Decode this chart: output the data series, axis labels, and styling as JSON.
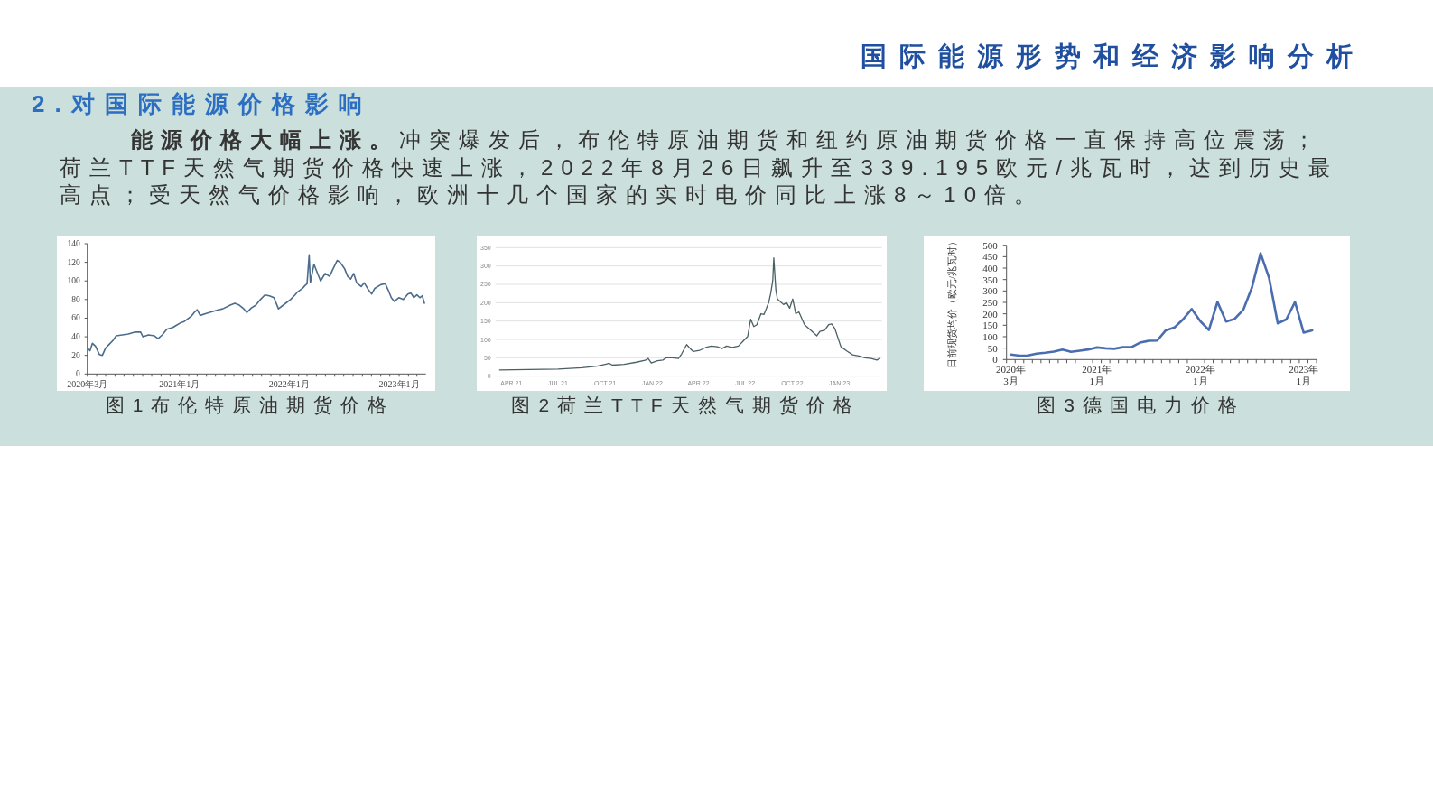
{
  "chart_data": [
    {
      "type": "other",
      "title": "国际能源形势和经济影响分析",
      "subtitle": "2.对国际能源价格影响",
      "annotations": [
        "能源价格大幅上涨。",
        "冲突爆发后，布伦特原油期货和纽约原油期货价格一直保持高位震荡；荷兰TTF天然气期货价格快速上涨，2022年8月26日飙升至339.195欧元/兆瓦时，达到历史最高点；受天然气价格影响，欧洲十几个国家的实时电价同比上涨8～10倍。"
      ]
    },
    {
      "type": "line",
      "title": "图1布伦特原油期货价格",
      "color": "#4c6c8c",
      "x": [
        "2020-03-01",
        "2020-03-10",
        "2020-03-18",
        "2020-03-28",
        "2020-04-10",
        "2020-04-20",
        "2020-05-01",
        "2020-05-10",
        "2020-05-25",
        "2020-06-05",
        "2020-06-25",
        "2020-07-15",
        "2020-08-05",
        "2020-08-25",
        "2020-09-02",
        "2020-09-20",
        "2020-10-10",
        "2020-10-22",
        "2020-11-05",
        "2020-11-20",
        "2020-12-10",
        "2020-12-20",
        "2021-01-05",
        "2021-01-15",
        "2021-02-09",
        "2021-02-19",
        "2021-03-01",
        "2021-03-11",
        "2021-03-31",
        "2021-04-20",
        "2021-05-10",
        "2021-05-25",
        "2021-06-19",
        "2021-07-04",
        "2021-07-19",
        "2021-08-03",
        "2021-08-13",
        "2021-08-28",
        "2021-09-12",
        "2021-09-27",
        "2021-10-12",
        "2021-10-27",
        "2021-11-11",
        "2021-11-26",
        "2021-12-16",
        "2022-01-05",
        "2022-01-20",
        "2022-01-28",
        "2022-02-14",
        "2022-02-22",
        "2022-03-01",
        "2022-03-08",
        "2022-03-12",
        "2022-03-24",
        "2022-04-05",
        "2022-04-15",
        "2022-04-30",
        "2022-05-15",
        "2022-05-25",
        "2022-06-09",
        "2022-06-19",
        "2022-07-04",
        "2022-07-14",
        "2022-07-24",
        "2022-08-03",
        "2022-08-13",
        "2022-08-28",
        "2022-09-07",
        "2022-09-22",
        "2022-10-02",
        "2022-10-12",
        "2022-11-01",
        "2022-11-16",
        "2022-11-26",
        "2022-12-06",
        "2022-12-16",
        "2022-12-31",
        "2023-01-15",
        "2023-01-30",
        "2023-02-09",
        "2023-02-19",
        "2023-03-01",
        "2023-03-11",
        "2023-03-19",
        "2023-03-26"
      ],
      "values": [
        28,
        25,
        33,
        30,
        21,
        20,
        28,
        31,
        36,
        41,
        42,
        43,
        45,
        45,
        40,
        42,
        41,
        38,
        42,
        48,
        50,
        52,
        55,
        56,
        62,
        66,
        69,
        63,
        65,
        67,
        69,
        70,
        74,
        76,
        74,
        70,
        66,
        71,
        74,
        80,
        85,
        84,
        82,
        70,
        75,
        80,
        85,
        88,
        92,
        95,
        97,
        128,
        98,
        118,
        108,
        100,
        108,
        105,
        112,
        122,
        120,
        113,
        105,
        102,
        108,
        98,
        94,
        98,
        90,
        86,
        92,
        96,
        97,
        90,
        82,
        78,
        82,
        80,
        86,
        87,
        82,
        85,
        82,
        84,
        76
      ],
      "xlim": [
        "2020-03-01",
        "2023-03-31"
      ],
      "xticks": [
        {
          "value": "2020-03",
          "label": "2020年3月"
        },
        {
          "value": "2020-04",
          "label": null
        },
        {
          "value": "2020-05",
          "label": null
        },
        {
          "value": "2020-06",
          "label": null
        },
        {
          "value": "2020-07",
          "label": null
        },
        {
          "value": "2020-08",
          "label": null
        },
        {
          "value": "2020-09",
          "label": null
        },
        {
          "value": "2020-10",
          "label": null
        },
        {
          "value": "2020-11",
          "label": null
        },
        {
          "value": "2020-12",
          "label": null
        },
        {
          "value": "2021-01",
          "label": "2021年1月"
        },
        {
          "value": "2021-02",
          "label": null
        },
        {
          "value": "2021-03",
          "label": null
        },
        {
          "value": "2021-04",
          "label": null
        },
        {
          "value": "2021-05",
          "label": null
        },
        {
          "value": "2021-06",
          "label": null
        },
        {
          "value": "2021-07",
          "label": null
        },
        {
          "value": "2021-08",
          "label": null
        },
        {
          "value": "2021-09",
          "label": null
        },
        {
          "value": "2021-10",
          "label": null
        },
        {
          "value": "2021-11",
          "label": null
        },
        {
          "value": "2021-12",
          "label": null
        },
        {
          "value": "2022-01",
          "label": "2022年1月"
        },
        {
          "value": "2022-02",
          "label": null
        },
        {
          "value": "2022-03",
          "label": null
        },
        {
          "value": "2022-04",
          "label": null
        },
        {
          "value": "2022-05",
          "label": null
        },
        {
          "value": "2022-06",
          "label": null
        },
        {
          "value": "2022-07",
          "label": null
        },
        {
          "value": "2022-08",
          "label": null
        },
        {
          "value": "2022-09",
          "label": null
        },
        {
          "value": "2022-10",
          "label": null
        },
        {
          "value": "2022-11",
          "label": null
        },
        {
          "value": "2022-12",
          "label": null
        },
        {
          "value": "2023-01",
          "label": "2023年1月"
        },
        {
          "value": "2023-02",
          "label": null
        },
        {
          "value": "2023-03",
          "label": null
        }
      ],
      "ylim": [
        0,
        140
      ],
      "yticks": [
        0,
        20,
        40,
        60,
        80,
        100,
        120,
        140
      ]
    },
    {
      "type": "line",
      "title": "图2荷兰TTF天然气期货价格",
      "color": "#4a5f63",
      "grid": "y",
      "x": [
        "2021-03-09",
        "2021-05-03",
        "2021-07-01",
        "2021-07-24",
        "2021-08-17",
        "2021-09-15",
        "2021-10-03",
        "2021-10-09",
        "2021-10-15",
        "2021-11-07",
        "2021-12-01",
        "2021-12-18",
        "2021-12-24",
        "2021-12-30",
        "2022-01-11",
        "2022-01-22",
        "2022-01-28",
        "2022-02-09",
        "2022-02-21",
        "2022-02-27",
        "2022-03-09",
        "2022-03-16",
        "2022-03-22",
        "2022-04-03",
        "2022-04-15",
        "2022-04-26",
        "2022-05-08",
        "2022-05-17",
        "2022-05-26",
        "2022-06-06",
        "2022-06-18",
        "2022-06-27",
        "2022-07-06",
        "2022-07-12",
        "2022-07-18",
        "2022-07-24",
        "2022-08-01",
        "2022-08-07",
        "2022-08-16",
        "2022-08-20",
        "2022-08-24",
        "2022-08-26",
        "2022-08-30",
        "2022-09-02",
        "2022-09-14",
        "2022-09-20",
        "2022-09-26",
        "2022-10-02",
        "2022-10-08",
        "2022-10-14",
        "2022-10-25",
        "2022-11-06",
        "2022-11-18",
        "2022-11-24",
        "2022-12-03",
        "2022-12-11",
        "2022-12-17",
        "2022-12-23",
        "2023-01-04",
        "2023-01-16",
        "2023-01-27",
        "2023-02-08",
        "2023-02-20",
        "2023-03-04",
        "2023-03-15",
        "2023-03-21"
      ],
      "values": [
        17,
        18,
        19,
        21,
        23,
        27,
        33,
        35,
        30,
        32,
        38,
        43,
        48,
        36,
        42,
        44,
        50,
        50,
        48,
        60,
        86,
        75,
        67,
        70,
        78,
        82,
        80,
        75,
        82,
        78,
        82,
        95,
        108,
        155,
        135,
        140,
        170,
        168,
        200,
        225,
        260,
        322,
        235,
        210,
        195,
        200,
        185,
        210,
        170,
        175,
        140,
        125,
        110,
        122,
        125,
        140,
        142,
        130,
        80,
        68,
        58,
        55,
        50,
        48,
        44,
        48
      ],
      "xlim": [
        "2021-03-01",
        "2023-03-25"
      ],
      "xticks": [
        {
          "value": "2021-04",
          "label": "APR 21"
        },
        {
          "value": "2021-07",
          "label": "JUL 21"
        },
        {
          "value": "2021-10",
          "label": "OCT 21"
        },
        {
          "value": "2022-01",
          "label": "JAN 22"
        },
        {
          "value": "2022-04",
          "label": "APR 22"
        },
        {
          "value": "2022-07",
          "label": "JUL 22"
        },
        {
          "value": "2022-10",
          "label": "OCT 22"
        },
        {
          "value": "2023-01",
          "label": "JAN 23"
        }
      ],
      "ylim": [
        0,
        350
      ],
      "yticks": [
        0,
        50,
        100,
        150,
        200,
        250,
        300,
        350
      ]
    },
    {
      "type": "line",
      "title": "图3德国电力价格",
      "ylabel": "日前现货均价（欧元/兆瓦时）",
      "color": "#4a6db0",
      "categories": [
        "2020年\n3月",
        null,
        null,
        null,
        null,
        null,
        null,
        null,
        null,
        null,
        "2021年\n1月",
        null,
        null,
        null,
        null,
        null,
        null,
        null,
        null,
        null,
        null,
        null,
        "2022年\n1月",
        null,
        null,
        null,
        null,
        null,
        null,
        null,
        null,
        null,
        null,
        null,
        "2023年\n1月",
        null
      ],
      "values": [
        22,
        17,
        18,
        26,
        30,
        35,
        44,
        34,
        39,
        44,
        53,
        49,
        47,
        54,
        54,
        74,
        82,
        83,
        128,
        140,
        176,
        221,
        168,
        129,
        252,
        166,
        178,
        218,
        315,
        465,
        356,
        158,
        176,
        252,
        118,
        128
      ],
      "ylim": [
        0,
        500
      ],
      "yticks": [
        0,
        50,
        100,
        150,
        200,
        250,
        300,
        350,
        400,
        450,
        500
      ]
    }
  ]
}
